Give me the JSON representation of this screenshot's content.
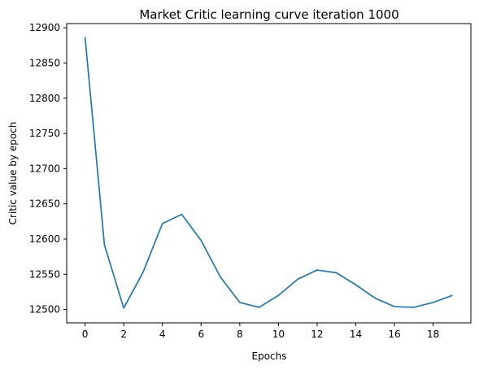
{
  "chart_data": {
    "type": "line",
    "title": "Market Critic learning curve iteration 1000",
    "xlabel": "Epochs",
    "ylabel": "Critic value by epoch",
    "x": [
      0,
      1,
      2,
      3,
      4,
      5,
      6,
      7,
      8,
      9,
      10,
      11,
      12,
      13,
      14,
      15,
      16,
      17,
      18,
      19
    ],
    "series": [
      {
        "values": [
          12887,
          12592,
          12502,
          12553,
          12622,
          12635,
          12598,
          12546,
          12510,
          12503,
          12520,
          12543,
          12556,
          12552,
          12535,
          12516,
          12504,
          12503,
          12510,
          12520
        ]
      }
    ],
    "xlim": [
      -0.95,
      19.95
    ],
    "ylim": [
      12481,
      12906
    ],
    "xticks": [
      "0",
      "2",
      "4",
      "6",
      "8",
      "10",
      "12",
      "14",
      "16",
      "18"
    ],
    "yticks": [
      "12500",
      "12550",
      "12600",
      "12650",
      "12700",
      "12750",
      "12800",
      "12850",
      "12900"
    ],
    "grid": false,
    "line_color": "#1f77b4"
  }
}
